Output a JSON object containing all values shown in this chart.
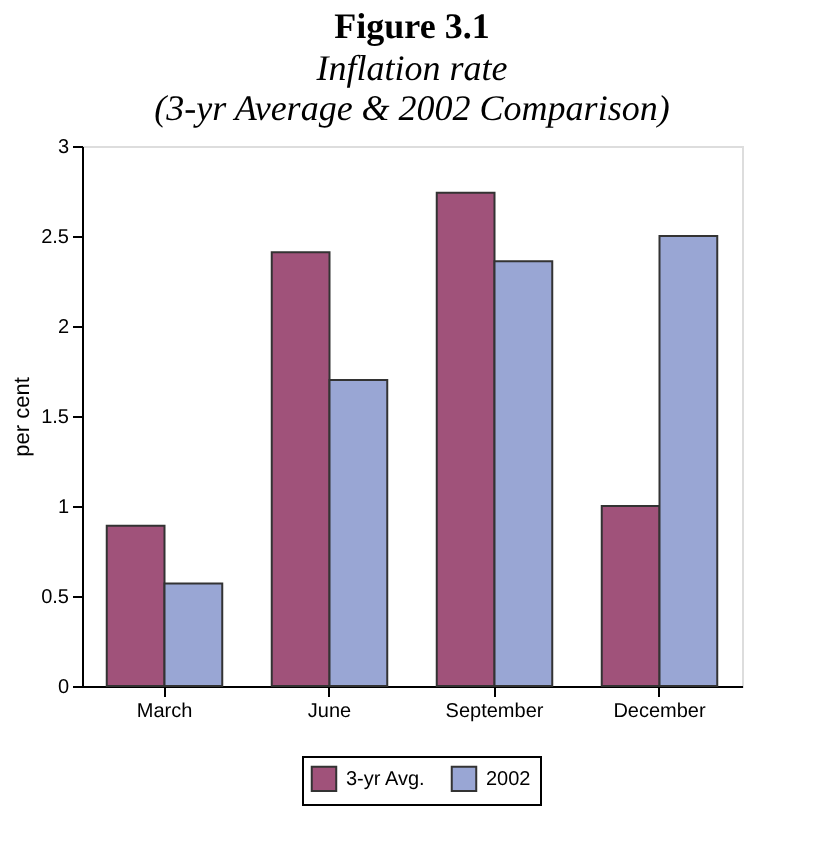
{
  "chart_data": {
    "type": "bar",
    "title": "Figure 3.1",
    "subtitle": "Inflation rate\n(3-yr Average & 2002 Comparison)",
    "ylabel": "per cent",
    "categories": [
      "March",
      "June",
      "September",
      "December"
    ],
    "series": [
      {
        "name": "3-yr Avg.",
        "color": "#a0527a",
        "values": [
          0.89,
          2.41,
          2.74,
          1.0
        ]
      },
      {
        "name": "2002",
        "color": "#99a6d4",
        "values": [
          0.57,
          1.7,
          2.36,
          2.5
        ]
      }
    ],
    "ylim": [
      0,
      3
    ],
    "yticks": [
      0,
      0.5,
      1,
      1.5,
      2,
      2.5,
      3
    ],
    "grid": false,
    "legend": "bottom"
  }
}
